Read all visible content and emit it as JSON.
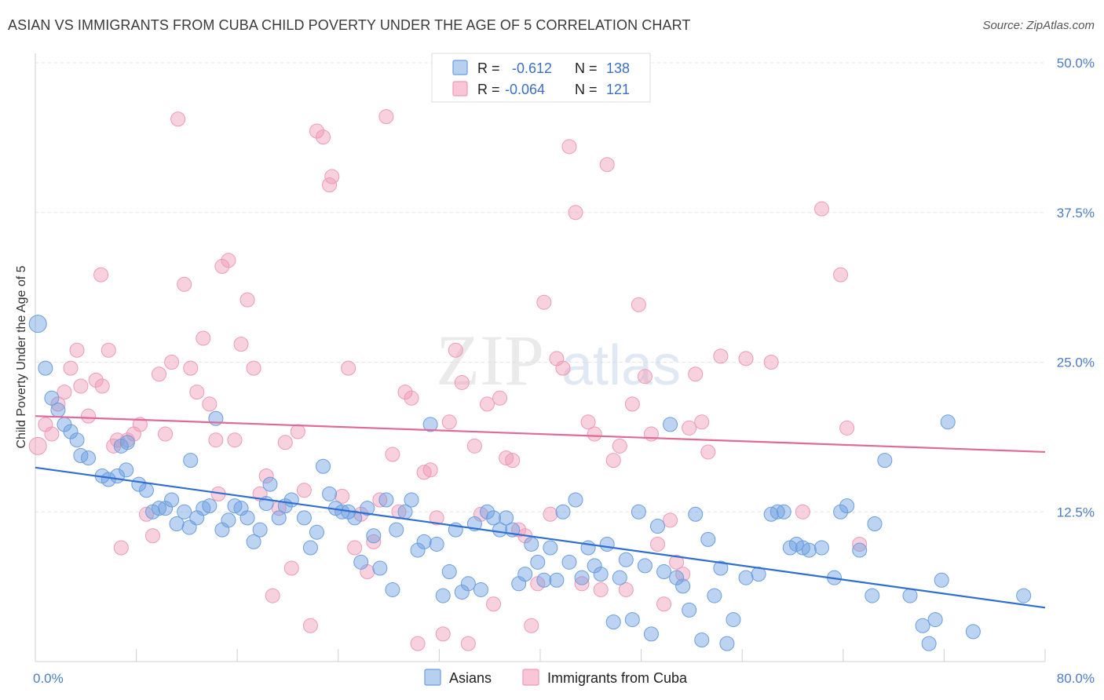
{
  "title": "ASIAN VS IMMIGRANTS FROM CUBA CHILD POVERTY UNDER THE AGE OF 5 CORRELATION CHART",
  "source": "Source: ZipAtlas.com",
  "watermark": {
    "zip": "ZIP",
    "atlas": "atlas"
  },
  "legend": {
    "row1": {
      "r_label": "R =",
      "r_value": "-0.612",
      "n_label": "N =",
      "n_value": "138"
    },
    "row2": {
      "r_label": "R =",
      "r_value": "-0.064",
      "n_label": "N =",
      "n_value": "121"
    }
  },
  "colors": {
    "asians": "#6b9ee0",
    "cuba": "#f09ab5",
    "asians_line": "#2e6fd1",
    "cuba_line": "#e06a96",
    "tick": "#4a7cc7"
  },
  "chart_data": {
    "type": "scatter",
    "title": "ASIAN VS IMMIGRANTS FROM CUBA CHILD POVERTY UNDER THE AGE OF 5 CORRELATION CHART",
    "xlabel": "",
    "ylabel": "Child Poverty Under the Age of 5",
    "xlim": [
      0,
      80
    ],
    "ylim": [
      0,
      50
    ],
    "x_tick_labels": [
      "0.0%",
      "80.0%"
    ],
    "y_tick_labels": [
      "12.5%",
      "25.0%",
      "37.5%",
      "50.0%"
    ],
    "y_ticks": [
      12.5,
      25.0,
      37.5,
      50.0
    ],
    "grid": true,
    "legend_position": "top-center",
    "series": [
      {
        "name": "Asians",
        "trend": {
          "x": [
            0,
            80
          ],
          "y": [
            16.2,
            4.5
          ]
        },
        "points": [
          [
            0.2,
            28.2
          ],
          [
            0.8,
            24.5
          ],
          [
            1.3,
            22.0
          ],
          [
            1.8,
            21.0
          ],
          [
            2.3,
            19.8
          ],
          [
            2.8,
            19.2
          ],
          [
            3.3,
            18.5
          ],
          [
            3.6,
            17.2
          ],
          [
            4.2,
            17.0
          ],
          [
            5.3,
            15.5
          ],
          [
            5.8,
            15.2
          ],
          [
            6.5,
            15.5
          ],
          [
            6.8,
            18.0
          ],
          [
            7.3,
            18.3
          ],
          [
            7.2,
            16.0
          ],
          [
            8.2,
            14.8
          ],
          [
            8.8,
            14.3
          ],
          [
            9.3,
            12.5
          ],
          [
            9.8,
            12.8
          ],
          [
            10.3,
            12.8
          ],
          [
            10.8,
            13.5
          ],
          [
            11.2,
            11.5
          ],
          [
            11.8,
            12.5
          ],
          [
            12.2,
            11.2
          ],
          [
            12.3,
            16.8
          ],
          [
            12.8,
            12.0
          ],
          [
            13.3,
            12.8
          ],
          [
            13.8,
            13.0
          ],
          [
            14.3,
            20.3
          ],
          [
            14.8,
            11.0
          ],
          [
            15.3,
            11.8
          ],
          [
            15.8,
            13.0
          ],
          [
            16.3,
            12.8
          ],
          [
            16.8,
            12.0
          ],
          [
            17.3,
            10.0
          ],
          [
            17.8,
            11.0
          ],
          [
            18.3,
            13.2
          ],
          [
            18.6,
            14.8
          ],
          [
            19.3,
            12.0
          ],
          [
            19.8,
            13.0
          ],
          [
            20.3,
            13.5
          ],
          [
            21.3,
            12.0
          ],
          [
            21.8,
            9.5
          ],
          [
            22.3,
            10.8
          ],
          [
            22.8,
            16.3
          ],
          [
            23.3,
            14.0
          ],
          [
            23.8,
            12.8
          ],
          [
            24.3,
            12.5
          ],
          [
            24.8,
            12.5
          ],
          [
            25.3,
            12.0
          ],
          [
            25.8,
            8.3
          ],
          [
            26.3,
            12.8
          ],
          [
            26.8,
            10.5
          ],
          [
            27.3,
            7.8
          ],
          [
            27.8,
            13.5
          ],
          [
            28.3,
            6.0
          ],
          [
            28.6,
            11.0
          ],
          [
            29.3,
            12.5
          ],
          [
            29.8,
            13.5
          ],
          [
            30.3,
            9.3
          ],
          [
            30.8,
            10.0
          ],
          [
            31.3,
            19.8
          ],
          [
            31.8,
            9.8
          ],
          [
            32.3,
            5.5
          ],
          [
            32.8,
            7.5
          ],
          [
            33.3,
            11.0
          ],
          [
            33.8,
            5.8
          ],
          [
            34.3,
            6.5
          ],
          [
            34.8,
            11.5
          ],
          [
            35.3,
            6.0
          ],
          [
            35.8,
            12.5
          ],
          [
            36.3,
            12.0
          ],
          [
            36.8,
            11.0
          ],
          [
            37.3,
            12.0
          ],
          [
            37.8,
            11.0
          ],
          [
            38.3,
            6.5
          ],
          [
            38.8,
            7.3
          ],
          [
            39.3,
            9.8
          ],
          [
            39.8,
            8.3
          ],
          [
            40.3,
            6.8
          ],
          [
            40.8,
            9.5
          ],
          [
            41.3,
            6.8
          ],
          [
            41.8,
            12.5
          ],
          [
            42.3,
            8.3
          ],
          [
            42.8,
            13.5
          ],
          [
            43.3,
            7.0
          ],
          [
            43.8,
            9.5
          ],
          [
            44.3,
            8.0
          ],
          [
            44.8,
            7.3
          ],
          [
            45.3,
            9.8
          ],
          [
            45.8,
            3.3
          ],
          [
            46.3,
            7.0
          ],
          [
            46.8,
            8.5
          ],
          [
            47.3,
            3.5
          ],
          [
            47.8,
            12.5
          ],
          [
            48.3,
            8.0
          ],
          [
            48.8,
            2.3
          ],
          [
            49.3,
            11.3
          ],
          [
            49.8,
            7.5
          ],
          [
            50.3,
            19.8
          ],
          [
            50.8,
            7.0
          ],
          [
            51.3,
            6.3
          ],
          [
            51.8,
            4.3
          ],
          [
            52.3,
            12.3
          ],
          [
            52.8,
            1.8
          ],
          [
            53.3,
            10.2
          ],
          [
            53.8,
            5.5
          ],
          [
            54.3,
            7.8
          ],
          [
            54.8,
            1.5
          ],
          [
            55.3,
            3.5
          ],
          [
            56.3,
            7.0
          ],
          [
            57.3,
            7.3
          ],
          [
            58.3,
            12.3
          ],
          [
            58.8,
            12.5
          ],
          [
            59.3,
            12.5
          ],
          [
            59.8,
            9.5
          ],
          [
            60.3,
            9.8
          ],
          [
            60.8,
            9.5
          ],
          [
            61.3,
            9.3
          ],
          [
            62.3,
            9.5
          ],
          [
            63.3,
            7.0
          ],
          [
            63.8,
            12.5
          ],
          [
            64.3,
            13.0
          ],
          [
            65.3,
            9.3
          ],
          [
            66.3,
            5.5
          ],
          [
            66.5,
            11.5
          ],
          [
            67.3,
            16.8
          ],
          [
            69.3,
            5.5
          ],
          [
            70.3,
            3.0
          ],
          [
            70.8,
            1.5
          ],
          [
            71.3,
            3.5
          ],
          [
            71.8,
            6.8
          ],
          [
            72.3,
            20.0
          ],
          [
            74.3,
            2.5
          ],
          [
            78.3,
            5.5
          ]
        ]
      },
      {
        "name": "Immigrants from Cuba",
        "trend": {
          "x": [
            0,
            80
          ],
          "y": [
            20.5,
            17.5
          ]
        },
        "points": [
          [
            0.2,
            18.0
          ],
          [
            0.8,
            19.8
          ],
          [
            1.3,
            19.0
          ],
          [
            1.8,
            21.5
          ],
          [
            2.3,
            22.5
          ],
          [
            2.8,
            24.5
          ],
          [
            3.3,
            26.0
          ],
          [
            3.6,
            23.0
          ],
          [
            4.2,
            20.5
          ],
          [
            4.8,
            23.5
          ],
          [
            5.2,
            32.3
          ],
          [
            5.3,
            23.0
          ],
          [
            5.8,
            26.0
          ],
          [
            6.2,
            18.0
          ],
          [
            6.5,
            18.5
          ],
          [
            6.8,
            9.5
          ],
          [
            7.3,
            18.5
          ],
          [
            7.8,
            19.0
          ],
          [
            8.3,
            19.8
          ],
          [
            8.8,
            12.3
          ],
          [
            9.3,
            10.5
          ],
          [
            9.8,
            24.0
          ],
          [
            10.3,
            19.0
          ],
          [
            10.8,
            25.0
          ],
          [
            11.3,
            45.3
          ],
          [
            11.8,
            31.5
          ],
          [
            12.3,
            24.5
          ],
          [
            12.8,
            22.5
          ],
          [
            13.3,
            27.0
          ],
          [
            13.8,
            21.5
          ],
          [
            14.3,
            18.5
          ],
          [
            14.5,
            14.0
          ],
          [
            14.8,
            33.0
          ],
          [
            15.3,
            33.5
          ],
          [
            15.8,
            18.5
          ],
          [
            16.3,
            26.5
          ],
          [
            16.8,
            30.2
          ],
          [
            17.3,
            24.5
          ],
          [
            17.8,
            14.0
          ],
          [
            18.3,
            15.5
          ],
          [
            18.8,
            5.5
          ],
          [
            19.3,
            12.8
          ],
          [
            19.8,
            18.3
          ],
          [
            20.3,
            7.8
          ],
          [
            20.8,
            19.2
          ],
          [
            21.3,
            14.3
          ],
          [
            21.8,
            3.0
          ],
          [
            22.3,
            44.3
          ],
          [
            22.8,
            43.8
          ],
          [
            23.3,
            39.8
          ],
          [
            23.5,
            40.5
          ],
          [
            24.3,
            13.8
          ],
          [
            24.8,
            24.5
          ],
          [
            25.3,
            9.5
          ],
          [
            25.8,
            12.3
          ],
          [
            26.3,
            7.5
          ],
          [
            26.8,
            10.0
          ],
          [
            27.3,
            13.5
          ],
          [
            27.8,
            45.5
          ],
          [
            28.3,
            17.3
          ],
          [
            28.8,
            12.5
          ],
          [
            29.3,
            22.5
          ],
          [
            29.8,
            22.0
          ],
          [
            30.3,
            1.5
          ],
          [
            30.8,
            15.8
          ],
          [
            31.3,
            16.0
          ],
          [
            31.8,
            12.0
          ],
          [
            32.3,
            2.3
          ],
          [
            32.8,
            20.0
          ],
          [
            33.3,
            26.0
          ],
          [
            33.8,
            23.3
          ],
          [
            34.3,
            1.5
          ],
          [
            34.8,
            18.0
          ],
          [
            35.3,
            12.3
          ],
          [
            35.8,
            21.5
          ],
          [
            36.3,
            4.8
          ],
          [
            36.8,
            22.0
          ],
          [
            37.3,
            17.0
          ],
          [
            37.8,
            16.8
          ],
          [
            38.3,
            11.0
          ],
          [
            38.8,
            10.5
          ],
          [
            39.3,
            3.0
          ],
          [
            39.8,
            6.5
          ],
          [
            40.3,
            30.0
          ],
          [
            40.8,
            12.3
          ],
          [
            41.3,
            25.3
          ],
          [
            41.8,
            24.5
          ],
          [
            42.3,
            43.0
          ],
          [
            42.8,
            37.5
          ],
          [
            43.3,
            6.5
          ],
          [
            43.8,
            20.0
          ],
          [
            44.3,
            19.0
          ],
          [
            44.8,
            6.0
          ],
          [
            45.3,
            41.5
          ],
          [
            45.8,
            16.8
          ],
          [
            46.3,
            18.0
          ],
          [
            46.8,
            6.0
          ],
          [
            47.3,
            21.5
          ],
          [
            47.8,
            29.8
          ],
          [
            48.3,
            23.8
          ],
          [
            48.8,
            19.0
          ],
          [
            49.3,
            9.8
          ],
          [
            49.8,
            4.8
          ],
          [
            50.3,
            11.8
          ],
          [
            50.8,
            8.3
          ],
          [
            51.3,
            7.3
          ],
          [
            51.8,
            19.5
          ],
          [
            52.3,
            24.0
          ],
          [
            52.8,
            20.0
          ],
          [
            53.3,
            17.5
          ],
          [
            54.3,
            25.5
          ],
          [
            56.3,
            25.3
          ],
          [
            58.3,
            25.0
          ],
          [
            60.8,
            12.5
          ],
          [
            62.3,
            37.8
          ],
          [
            63.8,
            32.3
          ],
          [
            64.3,
            19.5
          ],
          [
            65.3,
            9.8
          ]
        ]
      }
    ]
  }
}
